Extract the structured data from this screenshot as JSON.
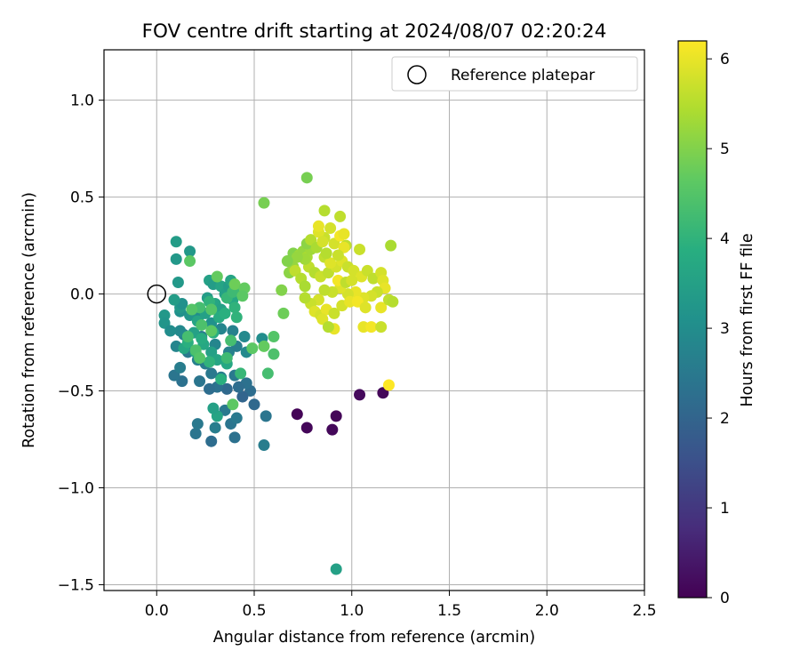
{
  "chart_data": {
    "type": "scatter",
    "title": "FOV centre drift starting at 2024/08/07 02:20:24",
    "xlabel": "Angular distance from reference (arcmin)",
    "ylabel": "Rotation from reference (arcmin)",
    "xlim": [
      -0.27,
      2.5
    ],
    "ylim": [
      -1.53,
      1.26
    ],
    "xticks": [
      0.0,
      0.5,
      1.0,
      1.5,
      2.0,
      2.5
    ],
    "xtick_labels": [
      "0.0",
      "0.5",
      "1.0",
      "1.5",
      "2.0",
      "2.5"
    ],
    "yticks": [
      -1.5,
      -1.0,
      -0.5,
      0.0,
      0.5,
      1.0
    ],
    "ytick_labels": [
      "−1.5",
      "−1.0",
      "−0.5",
      "0.0",
      "0.5",
      "1.0"
    ],
    "grid": true,
    "legend": {
      "placement": "top-right",
      "label": "Reference platepar",
      "marker": "open-circle"
    },
    "reference_point": {
      "x": 0.0,
      "y": 0.0
    },
    "colorbar": {
      "label": "Hours from first FF file",
      "colormap": "viridis",
      "range": [
        0,
        6.2
      ],
      "ticks": [
        0,
        1,
        2,
        3,
        4,
        5,
        6
      ],
      "tick_labels": [
        "0",
        "1",
        "2",
        "3",
        "4",
        "5",
        "6"
      ]
    },
    "points": [
      [
        0.72,
        -0.62,
        0.05
      ],
      [
        0.77,
        -0.69,
        0.1
      ],
      [
        0.9,
        -0.7,
        0.12
      ],
      [
        0.92,
        -0.63,
        0.08
      ],
      [
        1.04,
        -0.52,
        0.15
      ],
      [
        1.16,
        -0.51,
        0.1
      ],
      [
        0.55,
        -0.78,
        2.6
      ],
      [
        0.56,
        -0.63,
        2.4
      ],
      [
        0.4,
        -0.74,
        2.3
      ],
      [
        0.28,
        -0.76,
        2.2
      ],
      [
        0.2,
        -0.72,
        2.4
      ],
      [
        0.21,
        -0.67,
        2.5
      ],
      [
        0.3,
        -0.69,
        2.6
      ],
      [
        0.35,
        -0.6,
        2.5
      ],
      [
        0.38,
        -0.67,
        2.4
      ],
      [
        0.41,
        -0.64,
        2.5
      ],
      [
        0.5,
        -0.57,
        2.1
      ],
      [
        0.48,
        -0.5,
        2.2
      ],
      [
        0.46,
        -0.46,
        2.3
      ],
      [
        0.44,
        -0.53,
        2.0
      ],
      [
        0.42,
        -0.48,
        2.2
      ],
      [
        0.36,
        -0.49,
        2.1
      ],
      [
        0.31,
        -0.48,
        2.3
      ],
      [
        0.27,
        -0.49,
        2.2
      ],
      [
        0.22,
        -0.45,
        2.4
      ],
      [
        0.13,
        -0.45,
        2.3
      ],
      [
        0.09,
        -0.42,
        2.4
      ],
      [
        0.4,
        -0.42,
        2.5
      ],
      [
        0.33,
        -0.43,
        2.6
      ],
      [
        0.28,
        -0.41,
        2.5
      ],
      [
        0.25,
        -0.36,
        2.6
      ],
      [
        0.21,
        -0.34,
        2.7
      ],
      [
        0.16,
        -0.3,
        2.5
      ],
      [
        0.12,
        -0.38,
        2.6
      ],
      [
        0.1,
        -0.27,
        2.8
      ],
      [
        0.14,
        -0.21,
        2.7
      ],
      [
        0.12,
        -0.19,
        2.9
      ],
      [
        0.23,
        -0.22,
        2.6
      ],
      [
        0.3,
        -0.26,
        2.8
      ],
      [
        0.37,
        -0.3,
        2.7
      ],
      [
        0.41,
        -0.27,
        2.6
      ],
      [
        0.46,
        -0.3,
        2.9
      ],
      [
        0.54,
        -0.23,
        3.0
      ],
      [
        0.45,
        -0.22,
        2.9
      ],
      [
        0.39,
        -0.19,
        2.7
      ],
      [
        0.33,
        -0.18,
        2.8
      ],
      [
        0.28,
        -0.15,
        3.1
      ],
      [
        0.22,
        -0.11,
        3.0
      ],
      [
        0.17,
        -0.11,
        3.2
      ],
      [
        0.12,
        -0.09,
        3.1
      ],
      [
        0.04,
        -0.11,
        3.3
      ],
      [
        0.04,
        -0.15,
        3.2
      ],
      [
        0.07,
        -0.19,
        3.0
      ],
      [
        0.12,
        -0.07,
        3.3
      ],
      [
        0.13,
        -0.05,
        3.1
      ],
      [
        0.09,
        -0.03,
        3.4
      ],
      [
        0.11,
        0.06,
        3.3
      ],
      [
        0.1,
        0.18,
        3.3
      ],
      [
        0.1,
        0.27,
        3.4
      ],
      [
        0.17,
        0.22,
        3.3
      ],
      [
        0.26,
        -0.02,
        3.4
      ],
      [
        0.27,
        0.07,
        3.5
      ],
      [
        0.29,
        0.05,
        3.4
      ],
      [
        0.33,
        0.04,
        3.6
      ],
      [
        0.35,
        0.0,
        3.5
      ],
      [
        0.37,
        0.04,
        3.4
      ],
      [
        0.3,
        -0.05,
        3.6
      ],
      [
        0.33,
        -0.08,
        3.5
      ],
      [
        0.39,
        -0.03,
        3.7
      ],
      [
        0.38,
        0.07,
        3.6
      ],
      [
        0.25,
        -0.1,
        3.5
      ],
      [
        0.21,
        -0.14,
        3.6
      ],
      [
        0.19,
        -0.2,
        3.5
      ],
      [
        0.24,
        -0.26,
        3.7
      ],
      [
        0.28,
        -0.3,
        3.5
      ],
      [
        0.31,
        -0.34,
        3.6
      ],
      [
        0.36,
        -0.36,
        3.7
      ],
      [
        0.2,
        -0.3,
        3.8
      ],
      [
        0.14,
        -0.28,
        3.7
      ],
      [
        0.16,
        -0.25,
        3.9
      ],
      [
        0.23,
        -0.23,
        3.8
      ],
      [
        0.29,
        -0.2,
        3.9
      ],
      [
        0.32,
        -0.12,
        3.8
      ],
      [
        0.35,
        -0.1,
        3.9
      ],
      [
        0.41,
        -0.12,
        4.0
      ],
      [
        0.4,
        -0.07,
        4.0
      ],
      [
        0.36,
        -0.02,
        4.1
      ],
      [
        0.43,
        0.02,
        4.2
      ],
      [
        0.39,
        0.01,
        4.2
      ],
      [
        0.27,
        -0.04,
        4.0
      ],
      [
        0.22,
        -0.07,
        4.3
      ],
      [
        0.38,
        -0.24,
        4.3
      ],
      [
        0.36,
        -0.33,
        4.2
      ],
      [
        0.43,
        -0.41,
        4.1
      ],
      [
        0.31,
        -0.63,
        3.6
      ],
      [
        0.29,
        -0.59,
        3.5
      ],
      [
        0.33,
        -0.44,
        3.9
      ],
      [
        0.27,
        -0.35,
        4.0
      ],
      [
        0.57,
        -0.41,
        4.3
      ],
      [
        0.6,
        -0.31,
        4.4
      ],
      [
        0.6,
        -0.22,
        4.5
      ],
      [
        0.49,
        -0.28,
        4.6
      ],
      [
        0.55,
        -0.27,
        4.7
      ],
      [
        0.39,
        -0.57,
        4.6
      ],
      [
        0.2,
        -0.29,
        4.4
      ],
      [
        0.22,
        -0.33,
        4.5
      ],
      [
        0.16,
        -0.22,
        4.3
      ],
      [
        0.18,
        -0.08,
        4.5
      ],
      [
        0.23,
        -0.16,
        4.4
      ],
      [
        0.28,
        -0.19,
        4.6
      ],
      [
        0.28,
        -0.08,
        4.5
      ],
      [
        0.17,
        0.17,
        4.6
      ],
      [
        0.31,
        0.09,
        4.7
      ],
      [
        0.4,
        0.05,
        4.8
      ],
      [
        0.45,
        0.03,
        4.7
      ],
      [
        0.44,
        -0.01,
        4.6
      ],
      [
        0.65,
        -0.1,
        4.8
      ],
      [
        0.64,
        0.02,
        5.0
      ],
      [
        0.68,
        0.11,
        5.1
      ],
      [
        0.7,
        0.14,
        5.2
      ],
      [
        0.7,
        0.21,
        5.0
      ],
      [
        0.73,
        0.2,
        5.3
      ],
      [
        0.75,
        0.22,
        5.2
      ],
      [
        0.77,
        0.19,
        5.4
      ],
      [
        0.79,
        0.23,
        5.3
      ],
      [
        0.77,
        0.26,
        5.1
      ],
      [
        0.79,
        0.28,
        5.5
      ],
      [
        0.77,
        0.6,
        4.9
      ],
      [
        0.55,
        0.47,
        4.9
      ],
      [
        0.86,
        0.43,
        5.5
      ],
      [
        0.94,
        0.4,
        5.6
      ],
      [
        1.2,
        0.25,
        5.4
      ],
      [
        1.04,
        0.23,
        5.7
      ],
      [
        0.97,
        0.25,
        5.6
      ],
      [
        0.91,
        0.26,
        5.8
      ],
      [
        0.86,
        0.29,
        5.7
      ],
      [
        0.83,
        0.32,
        5.9
      ],
      [
        0.83,
        0.35,
        6.0
      ],
      [
        0.89,
        0.34,
        5.8
      ],
      [
        0.94,
        0.3,
        6.1
      ],
      [
        0.96,
        0.24,
        6.0
      ],
      [
        0.71,
        0.12,
        5.6
      ],
      [
        0.74,
        0.08,
        5.5
      ],
      [
        0.76,
        0.04,
        5.4
      ],
      [
        0.78,
        0.14,
        5.6
      ],
      [
        0.81,
        0.11,
        5.5
      ],
      [
        0.84,
        0.09,
        5.7
      ],
      [
        0.88,
        0.11,
        5.6
      ],
      [
        0.92,
        0.14,
        5.8
      ],
      [
        0.95,
        0.17,
        5.9
      ],
      [
        0.98,
        0.14,
        5.7
      ],
      [
        1.01,
        0.12,
        5.8
      ],
      [
        1.05,
        0.09,
        5.9
      ],
      [
        1.08,
        0.12,
        5.7
      ],
      [
        1.11,
        0.08,
        5.6
      ],
      [
        1.15,
        0.11,
        5.8
      ],
      [
        1.16,
        0.07,
        5.9
      ],
      [
        1.17,
        0.03,
        6.0
      ],
      [
        1.13,
        0.01,
        5.7
      ],
      [
        1.1,
        -0.01,
        5.8
      ],
      [
        1.06,
        -0.02,
        5.9
      ],
      [
        1.02,
        0.01,
        6.0
      ],
      [
        0.98,
        0.0,
        5.8
      ],
      [
        0.94,
        0.03,
        5.9
      ],
      [
        0.9,
        0.01,
        5.7
      ],
      [
        0.86,
        0.02,
        5.6
      ],
      [
        0.83,
        -0.03,
        5.8
      ],
      [
        0.79,
        -0.05,
        5.7
      ],
      [
        0.76,
        -0.02,
        5.5
      ],
      [
        0.81,
        -0.09,
        5.9
      ],
      [
        0.84,
        -0.11,
        5.8
      ],
      [
        0.87,
        -0.08,
        6.0
      ],
      [
        0.91,
        -0.1,
        5.7
      ],
      [
        0.95,
        -0.06,
        5.8
      ],
      [
        0.99,
        -0.04,
        6.0
      ],
      [
        1.03,
        -0.04,
        6.1
      ],
      [
        1.07,
        -0.07,
        5.9
      ],
      [
        1.15,
        -0.07,
        6.0
      ],
      [
        1.19,
        -0.03,
        5.6
      ],
      [
        1.21,
        -0.04,
        5.5
      ],
      [
        1.06,
        -0.17,
        6.0
      ],
      [
        1.1,
        -0.17,
        6.1
      ],
      [
        1.15,
        -0.17,
        5.7
      ],
      [
        0.85,
        -0.13,
        5.9
      ],
      [
        0.91,
        -0.18,
        6.0
      ],
      [
        0.88,
        -0.17,
        5.5
      ],
      [
        0.93,
        0.07,
        6.1
      ],
      [
        0.97,
        0.06,
        5.6
      ],
      [
        1.0,
        0.07,
        5.8
      ],
      [
        1.19,
        -0.47,
        6.2
      ],
      [
        0.92,
        -1.42,
        3.5
      ],
      [
        0.86,
        0.19,
        5.6
      ],
      [
        0.89,
        0.16,
        5.9
      ],
      [
        0.93,
        0.2,
        5.7
      ],
      [
        0.82,
        0.24,
        5.4
      ],
      [
        0.76,
        0.18,
        5.3
      ],
      [
        0.72,
        0.19,
        5.2
      ],
      [
        0.67,
        0.17,
        5.0
      ],
      [
        0.96,
        0.31,
        6.0
      ],
      [
        0.85,
        0.27,
        5.8
      ],
      [
        0.87,
        0.21,
        5.5
      ]
    ]
  }
}
